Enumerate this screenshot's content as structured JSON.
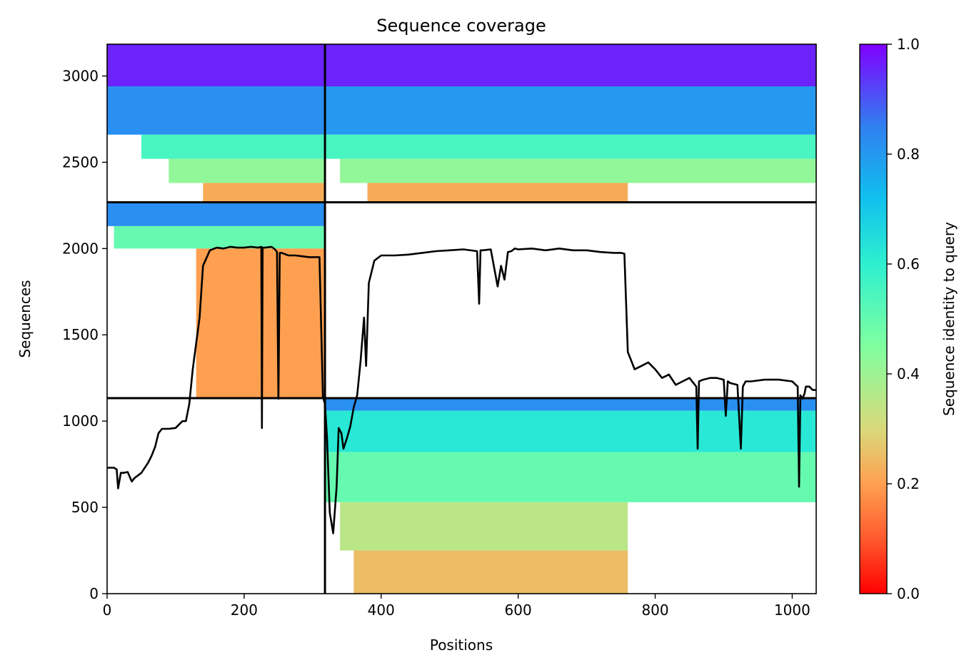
{
  "chart_data": {
    "type": "heatmap",
    "title": "Sequence coverage",
    "xlabel": "Positions",
    "ylabel": "Sequences",
    "xlim": [
      0,
      1035
    ],
    "ylim": [
      0,
      3184
    ],
    "x_ticks": [
      0,
      200,
      400,
      600,
      800,
      1000
    ],
    "y_ticks": [
      0,
      500,
      1000,
      1500,
      2000,
      2500,
      3000
    ],
    "grid": false,
    "colorbar": {
      "label": "Sequence identity to query",
      "colormap": "rainbow_r",
      "range": [
        0.0,
        1.0
      ],
      "ticks": [
        "0.0",
        "0.2",
        "0.4",
        "0.6",
        "0.8",
        "1.0"
      ],
      "colors": [
        "#ff0000",
        "#ff8040",
        "#ffb35f",
        "#d9d97a",
        "#80ff9f",
        "#2ef0d0",
        "#19c0f0",
        "#3080f0",
        "#5040ff",
        "#8000ff"
      ]
    },
    "chain_boundaries": {
      "x": [
        318
      ],
      "y": [
        1133,
        2268
      ]
    },
    "blocks": [
      {
        "x": [
          0,
          318
        ],
        "y": [
          2940,
          3184
        ],
        "identity": 0.96
      },
      {
        "x": [
          318,
          1035
        ],
        "y": [
          2940,
          3184
        ],
        "identity": 0.96
      },
      {
        "x": [
          0,
          318
        ],
        "y": [
          2660,
          2940
        ],
        "identity": 0.82
      },
      {
        "x": [
          318,
          1035
        ],
        "y": [
          2660,
          2940
        ],
        "identity": 0.8
      },
      {
        "x": [
          50,
          318
        ],
        "y": [
          2520,
          2660
        ],
        "identity": 0.55
      },
      {
        "x": [
          318,
          1035
        ],
        "y": [
          2520,
          2660
        ],
        "identity": 0.55
      },
      {
        "x": [
          90,
          318
        ],
        "y": [
          2380,
          2520
        ],
        "identity": 0.42
      },
      {
        "x": [
          340,
          1035
        ],
        "y": [
          2380,
          2520
        ],
        "identity": 0.42
      },
      {
        "x": [
          140,
          318
        ],
        "y": [
          2268,
          2380
        ],
        "identity": 0.22
      },
      {
        "x": [
          380,
          760
        ],
        "y": [
          2268,
          2380
        ],
        "identity": 0.22
      },
      {
        "x": [
          0,
          318
        ],
        "y": [
          2130,
          2268
        ],
        "identity": 0.82
      },
      {
        "x": [
          10,
          318
        ],
        "y": [
          2000,
          2130
        ],
        "identity": 0.5
      },
      {
        "x": [
          130,
          318
        ],
        "y": [
          1133,
          2000
        ],
        "identity": 0.2
      },
      {
        "x": [
          318,
          1035
        ],
        "y": [
          1060,
          1133
        ],
        "identity": 0.82
      },
      {
        "x": [
          318,
          1035
        ],
        "y": [
          820,
          1060
        ],
        "identity": 0.62
      },
      {
        "x": [
          318,
          1035
        ],
        "y": [
          530,
          820
        ],
        "identity": 0.5
      },
      {
        "x": [
          340,
          760
        ],
        "y": [
          250,
          530
        ],
        "identity": 0.35
      },
      {
        "x": [
          360,
          760
        ],
        "y": [
          0,
          250
        ],
        "identity": 0.25
      }
    ],
    "coverage_line": {
      "x": [
        0,
        10,
        14,
        16,
        20,
        24,
        30,
        36,
        40,
        50,
        60,
        65,
        70,
        75,
        80,
        90,
        100,
        110,
        115,
        120,
        125,
        130,
        135,
        140,
        150,
        160,
        170,
        180,
        190,
        200,
        210,
        220,
        225,
        226,
        227,
        230,
        240,
        245,
        248,
        250,
        252,
        255,
        258,
        265,
        275,
        285,
        295,
        300,
        310,
        315,
        318,
        321,
        325,
        330,
        335,
        338,
        342,
        345,
        350,
        355,
        360,
        365,
        370,
        375,
        378,
        382,
        390,
        400,
        420,
        440,
        460,
        480,
        500,
        520,
        540,
        543,
        545,
        548,
        560,
        570,
        575,
        580,
        585,
        590,
        595,
        600,
        620,
        640,
        660,
        680,
        700,
        720,
        740,
        750,
        755,
        760,
        765,
        770,
        780,
        790,
        800,
        810,
        820,
        830,
        840,
        850,
        860,
        862,
        864,
        870,
        880,
        890,
        900,
        903,
        906,
        910,
        920,
        925,
        928,
        932,
        940,
        960,
        980,
        1000,
        1008,
        1010,
        1012,
        1015,
        1018,
        1020,
        1025,
        1030,
        1035
      ],
      "y": [
        730,
        730,
        720,
        610,
        700,
        700,
        705,
        650,
        670,
        700,
        760,
        800,
        850,
        930,
        955,
        955,
        960,
        1000,
        1000,
        1100,
        1300,
        1450,
        1600,
        1900,
        1990,
        2005,
        2000,
        2010,
        2005,
        2005,
        2010,
        2005,
        2010,
        960,
        2005,
        2005,
        2010,
        1995,
        1980,
        1130,
        1975,
        1975,
        1970,
        1960,
        1960,
        1955,
        1950,
        1950,
        1950,
        1140,
        1100,
        900,
        470,
        350,
        620,
        960,
        930,
        840,
        900,
        970,
        1080,
        1150,
        1350,
        1600,
        1320,
        1800,
        1930,
        1960,
        1960,
        1965,
        1975,
        1985,
        1990,
        1995,
        1985,
        1680,
        1990,
        1990,
        1995,
        1780,
        1900,
        1820,
        1980,
        1985,
        2000,
        1995,
        2000,
        1990,
        2000,
        1990,
        1990,
        1980,
        1975,
        1975,
        1970,
        1400,
        1350,
        1300,
        1320,
        1340,
        1300,
        1250,
        1270,
        1210,
        1230,
        1250,
        1200,
        840,
        1230,
        1240,
        1250,
        1250,
        1240,
        1030,
        1230,
        1220,
        1210,
        840,
        1200,
        1230,
        1230,
        1240,
        1240,
        1230,
        1200,
        620,
        1150,
        1130,
        1160,
        1200,
        1200,
        1180,
        1180
      ]
    }
  }
}
